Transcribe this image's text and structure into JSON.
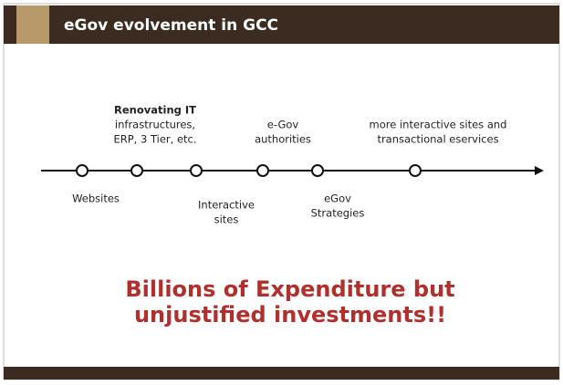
{
  "header": {
    "title": "eGov evolvement in GCC"
  },
  "timeline": {
    "above": [
      {
        "lines": [
          "Renovating IT",
          "infrastructures,",
          "ERP, 3 Tier, etc."
        ]
      },
      {
        "lines": [
          "e-Gov",
          "authorities"
        ]
      },
      {
        "lines": [
          "more interactive sites and",
          "transactional eservices"
        ]
      }
    ],
    "below": [
      {
        "lines": [
          "Websites"
        ]
      },
      {
        "lines": [
          "Interactive",
          "sites"
        ]
      },
      {
        "lines": [
          "eGov",
          "Strategies"
        ]
      }
    ]
  },
  "message": {
    "lines": [
      "Billions of Expenditure but",
      "unjustified investments!!"
    ]
  }
}
